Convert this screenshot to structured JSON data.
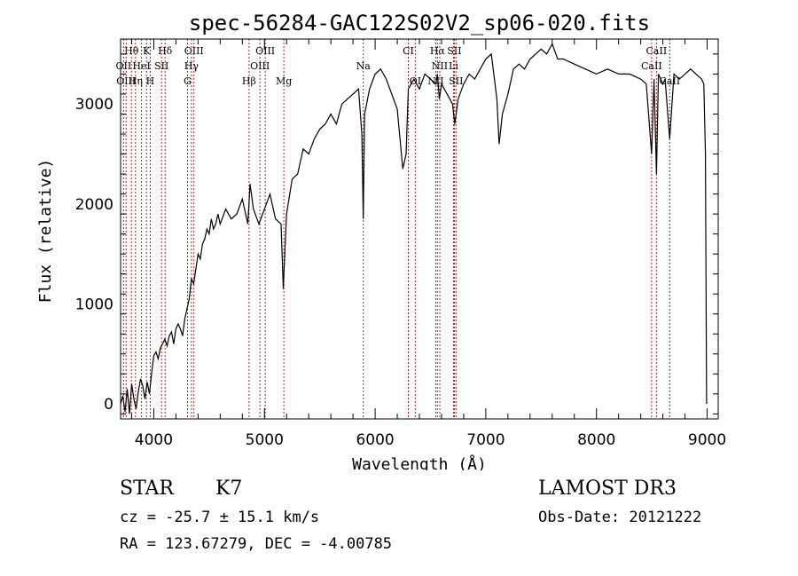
{
  "chart_data": {
    "type": "line",
    "title": "spec-56284-GAC122S02V2_sp06-020.fits",
    "xlabel": "Wavelength (Å)",
    "ylabel": "Flux (relative)",
    "xlim": [
      3700,
      9100
    ],
    "ylim": [
      -150,
      3650
    ],
    "xticks": [
      4000,
      5000,
      6000,
      7000,
      8000,
      9000
    ],
    "yticks": [
      0,
      1000,
      2000,
      3000
    ],
    "grid": false,
    "series": [
      {
        "name": "spectrum",
        "x": [
          3700,
          3720,
          3740,
          3760,
          3780,
          3800,
          3820,
          3840,
          3860,
          3880,
          3900,
          3920,
          3940,
          3960,
          3980,
          4000,
          4020,
          4040,
          4060,
          4080,
          4100,
          4120,
          4140,
          4160,
          4180,
          4200,
          4220,
          4240,
          4260,
          4280,
          4300,
          4320,
          4340,
          4360,
          4380,
          4400,
          4420,
          4440,
          4460,
          4480,
          4500,
          4520,
          4540,
          4560,
          4580,
          4600,
          4650,
          4700,
          4750,
          4800,
          4850,
          4870,
          4900,
          4950,
          5000,
          5050,
          5100,
          5150,
          5170,
          5185,
          5200,
          5250,
          5300,
          5350,
          5400,
          5450,
          5500,
          5550,
          5600,
          5650,
          5700,
          5750,
          5800,
          5850,
          5880,
          5893,
          5905,
          5950,
          6000,
          6050,
          6100,
          6150,
          6200,
          6250,
          6280,
          6300,
          6350,
          6400,
          6450,
          6500,
          6550,
          6563,
          6580,
          6600,
          6650,
          6700,
          6720,
          6750,
          6800,
          6850,
          6900,
          6950,
          7000,
          7050,
          7100,
          7120,
          7150,
          7200,
          7250,
          7300,
          7350,
          7400,
          7450,
          7500,
          7550,
          7600,
          7650,
          7700,
          7800,
          7900,
          8000,
          8100,
          8200,
          8300,
          8400,
          8450,
          8498,
          8520,
          8542,
          8560,
          8600,
          8620,
          8662,
          8700,
          8750,
          8800,
          8850,
          8900,
          8950,
          8970,
          8985,
          8995
        ],
        "values": [
          0,
          80,
          -80,
          150,
          -100,
          200,
          50,
          -50,
          120,
          250,
          180,
          50,
          220,
          100,
          300,
          480,
          520,
          450,
          560,
          600,
          650,
          580,
          680,
          720,
          600,
          750,
          800,
          750,
          680,
          850,
          950,
          1050,
          1250,
          1200,
          1350,
          1500,
          1450,
          1600,
          1650,
          1750,
          1700,
          1850,
          1750,
          1800,
          1900,
          1800,
          1950,
          1850,
          1900,
          2050,
          1800,
          2200,
          1950,
          1800,
          1950,
          2100,
          1850,
          1800,
          1150,
          1550,
          1900,
          2250,
          2300,
          2550,
          2500,
          2650,
          2750,
          2800,
          2900,
          2800,
          3000,
          3050,
          3100,
          3150,
          2700,
          1850,
          2900,
          3150,
          3300,
          3350,
          3250,
          3100,
          2950,
          2350,
          2500,
          3150,
          3250,
          3150,
          3300,
          3250,
          3200,
          3300,
          3050,
          3200,
          3100,
          3000,
          2800,
          3050,
          3200,
          3300,
          3250,
          3350,
          3450,
          3500,
          3050,
          2600,
          2900,
          3100,
          3350,
          3400,
          3350,
          3450,
          3500,
          3550,
          3500,
          3600,
          3450,
          3450,
          3400,
          3350,
          3300,
          3350,
          3300,
          3300,
          3250,
          3200,
          2500,
          3250,
          2300,
          3300,
          3200,
          3250,
          2650,
          3300,
          3250,
          3300,
          3350,
          3300,
          3250,
          3200,
          2500,
          0
        ]
      }
    ],
    "lines": [
      {
        "name": "Hθ",
        "wavelength": 3798,
        "row": 0,
        "dx": 0
      },
      {
        "name": "K",
        "wavelength": 3934,
        "row": 0,
        "dx": 0
      },
      {
        "name": "Hδ",
        "wavelength": 4102,
        "row": 0,
        "dx": 0
      },
      {
        "name": "OIII",
        "wavelength": 4363,
        "row": 0,
        "dx": 0
      },
      {
        "name": "OIII",
        "wavelength": 5007,
        "row": 0,
        "dx": 0
      },
      {
        "name": "CI",
        "wavelength": 6300,
        "row": 0,
        "dx": 0
      },
      {
        "name": "Hα",
        "wavelength": 6563,
        "row": 0,
        "dx": 0
      },
      {
        "name": "SII",
        "wavelength": 6716,
        "row": 0,
        "dx": 0
      },
      {
        "name": "CaII",
        "wavelength": 8542,
        "row": 0,
        "dx": 0
      },
      {
        "name": "OII",
        "wavelength": 3727,
        "row": 1,
        "dx": 0
      },
      {
        "name": "HeI",
        "wavelength": 3889,
        "row": 1,
        "dx": 0
      },
      {
        "name": "SII",
        "wavelength": 4070,
        "row": 1,
        "dx": 0
      },
      {
        "name": "Hγ",
        "wavelength": 4340,
        "row": 1,
        "dx": 0
      },
      {
        "name": "OIII",
        "wavelength": 4959,
        "row": 1,
        "dx": 0
      },
      {
        "name": "Na",
        "wavelength": 5893,
        "row": 1,
        "dx": 0
      },
      {
        "name": "NII",
        "wavelength": 6584,
        "row": 1,
        "dx": 0
      },
      {
        "name": "Li",
        "wavelength": 6708,
        "row": 1,
        "dx": 0
      },
      {
        "name": "CaII",
        "wavelength": 8498,
        "row": 1,
        "dx": 0
      },
      {
        "name": "OIII",
        "wavelength": 3750,
        "row": 2,
        "dx": 0
      },
      {
        "name": "Hη",
        "wavelength": 3835,
        "row": 2,
        "dx": 0
      },
      {
        "name": "H",
        "wavelength": 3968,
        "row": 2,
        "dx": 0
      },
      {
        "name": "G",
        "wavelength": 4305,
        "row": 2,
        "dx": 0
      },
      {
        "name": "Hβ",
        "wavelength": 4861,
        "row": 2,
        "dx": 0
      },
      {
        "name": "Mg",
        "wavelength": 5175,
        "row": 2,
        "dx": 0
      },
      {
        "name": "OI",
        "wavelength": 6363,
        "row": 2,
        "dx": 0
      },
      {
        "name": "NII",
        "wavelength": 6548,
        "row": 2,
        "dx": 0
      },
      {
        "name": "SII",
        "wavelength": 6731,
        "row": 2,
        "dx": 0
      },
      {
        "name": "CaII",
        "wavelength": 8662,
        "row": 2,
        "dx": 0
      }
    ]
  },
  "info": {
    "object_class": "STAR",
    "subclass": "K7",
    "survey": "LAMOST DR3",
    "cz": "cz = -25.7 ± 15.1 km/s",
    "obs_date": "Obs-Date: 20121222",
    "radec": "RA = 123.67279, DEC =  -4.00785"
  },
  "colors": {
    "ink": "#000000",
    "line_markers": "#b22222"
  }
}
